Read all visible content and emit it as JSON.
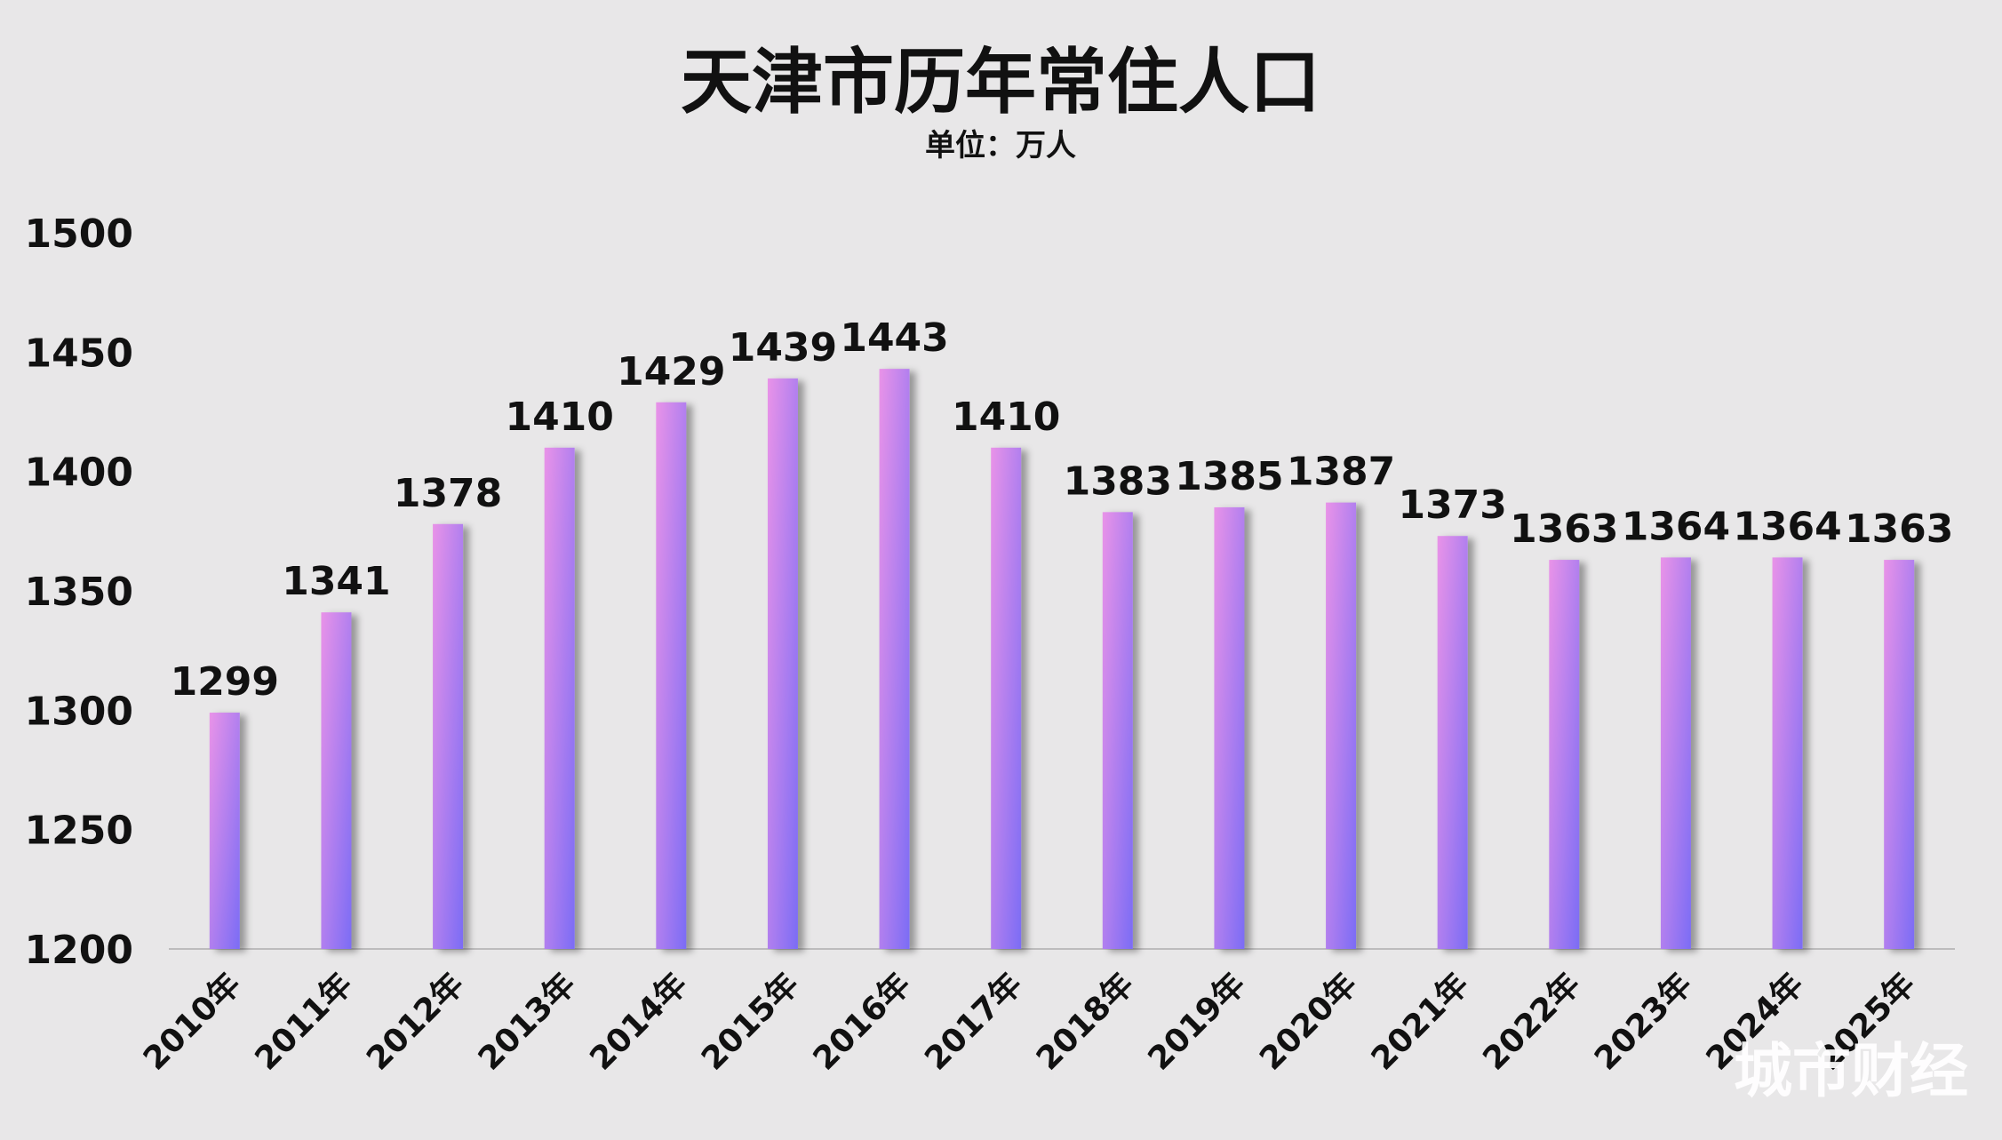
{
  "chart_data": {
    "type": "bar",
    "title": "天津市历年常住人口",
    "subtitle": "单位：万人",
    "categories": [
      "2010年",
      "2011年",
      "2012年",
      "2013年",
      "2014年",
      "2015年",
      "2016年",
      "2017年",
      "2018年",
      "2019年",
      "2020年",
      "2021年",
      "2022年",
      "2023年",
      "2024年",
      "2025年"
    ],
    "values": [
      1299,
      1341,
      1378,
      1410,
      1429,
      1439,
      1443,
      1410,
      1383,
      1385,
      1387,
      1373,
      1363,
      1364,
      1364,
      1363
    ],
    "ylim": [
      1200,
      1500
    ],
    "yticks": [
      1200,
      1250,
      1300,
      1350,
      1400,
      1450,
      1500
    ],
    "grid": false,
    "bar_gradient": [
      "#e993e8",
      "#7b6cf5"
    ]
  },
  "watermark": "城市财经"
}
